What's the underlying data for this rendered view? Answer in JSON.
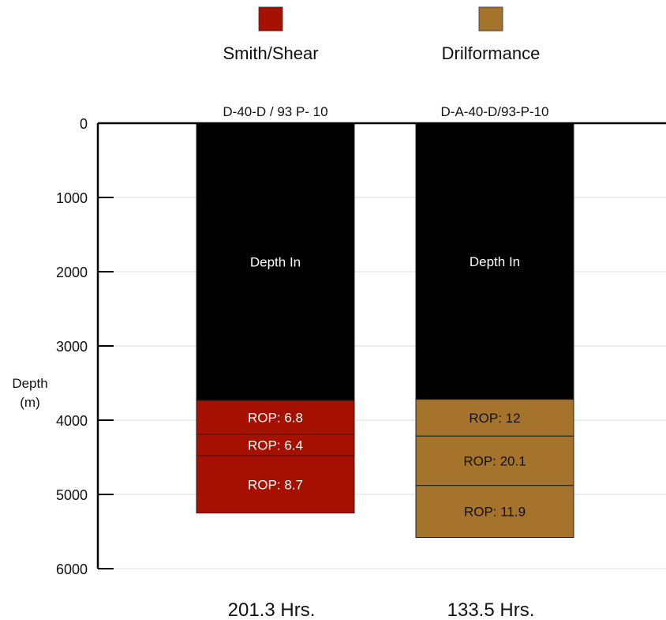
{
  "chart_data": {
    "type": "bar",
    "orientation": "vertical-stacked-depth",
    "ylabel_lines": [
      "Depth",
      "(m)"
    ],
    "ylim": [
      0,
      6000
    ],
    "y_inverted": true,
    "yticks": [
      0,
      1000,
      2000,
      3000,
      4000,
      5000,
      6000
    ],
    "grid": true,
    "legend": {
      "placement": "top",
      "entries": [
        {
          "name": "Smith/Shear",
          "color": "#a61000"
        },
        {
          "name": "Drilformance",
          "color": "#a5732c"
        }
      ]
    },
    "wells": [
      {
        "name": "D-40-D / 93 P- 10",
        "footer": "201.3 Hrs.",
        "color": "#a61000",
        "segments": [
          {
            "label": "Depth In",
            "from": 0,
            "to": 3735,
            "color": "#000000",
            "text_color": "#ffffff"
          },
          {
            "label": "ROP: 6.8",
            "from": 3735,
            "to": 4190,
            "color": "#a61000",
            "text_color": "#ffffff"
          },
          {
            "label": "ROP: 6.4",
            "from": 4190,
            "to": 4480,
            "color": "#a61000",
            "text_color": "#ffffff"
          },
          {
            "label": "ROP: 8.7",
            "from": 4480,
            "to": 5250,
            "color": "#a61000",
            "text_color": "#ffffff"
          }
        ]
      },
      {
        "name": "D-A-40-D/93-P-10",
        "footer": "133.5 Hrs.",
        "color": "#a5732c",
        "segments": [
          {
            "label": "Depth In",
            "from": 0,
            "to": 3720,
            "color": "#000000",
            "text_color": "#ffffff"
          },
          {
            "label": "ROP: 12",
            "from": 3720,
            "to": 4215,
            "color": "#a5732c",
            "text_color": "#111111"
          },
          {
            "label": "ROP: 20.1",
            "from": 4215,
            "to": 4880,
            "color": "#a5732c",
            "text_color": "#111111"
          },
          {
            "label": "ROP: 11.9",
            "from": 4880,
            "to": 5580,
            "color": "#a5732c",
            "text_color": "#111111"
          }
        ]
      }
    ]
  }
}
